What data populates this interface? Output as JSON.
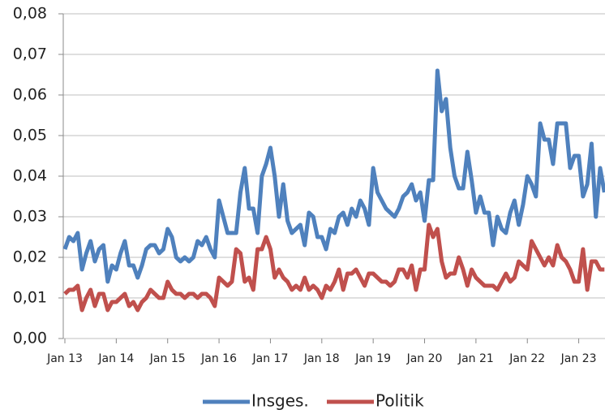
{
  "chart_data": {
    "type": "line",
    "categories": [
      "Jan 13",
      null,
      null,
      null,
      null,
      null,
      null,
      null,
      null,
      null,
      null,
      null,
      "Jan 14",
      null,
      null,
      null,
      null,
      null,
      null,
      null,
      null,
      null,
      null,
      null,
      "Jan 15",
      null,
      null,
      null,
      null,
      null,
      null,
      null,
      null,
      null,
      null,
      null,
      "Jan 16",
      null,
      null,
      null,
      null,
      null,
      null,
      null,
      null,
      null,
      null,
      null,
      "Jan 17",
      null,
      null,
      null,
      null,
      null,
      null,
      null,
      null,
      null,
      null,
      null,
      "Jan 18",
      null,
      null,
      null,
      null,
      null,
      null,
      null,
      null,
      null,
      null,
      null,
      "Jan 19",
      null,
      null,
      null,
      null,
      null,
      null,
      null,
      null,
      null,
      null,
      null,
      "Jan 20",
      null,
      null,
      null,
      null,
      null,
      null,
      null,
      null,
      null,
      null,
      null,
      "Jan 21",
      null,
      null,
      null,
      null,
      null,
      null,
      null,
      null,
      null,
      null,
      null,
      "Jan 22",
      null,
      null,
      null,
      null,
      null,
      null,
      null,
      null,
      null,
      null,
      null,
      "Jan 23",
      null,
      null,
      null,
      null,
      null,
      null
    ],
    "series": [
      {
        "name": "Insges.",
        "color": "#4f81bd",
        "values": [
          0.022,
          0.025,
          0.024,
          0.026,
          0.017,
          0.021,
          0.024,
          0.019,
          0.022,
          0.023,
          0.014,
          0.018,
          0.017,
          0.021,
          0.024,
          0.018,
          0.018,
          0.015,
          0.018,
          0.022,
          0.023,
          0.023,
          0.021,
          0.022,
          0.027,
          0.025,
          0.02,
          0.019,
          0.02,
          0.019,
          0.02,
          0.024,
          0.023,
          0.025,
          0.022,
          0.02,
          0.034,
          0.03,
          0.026,
          0.026,
          0.026,
          0.036,
          0.042,
          0.032,
          0.032,
          0.026,
          0.04,
          0.043,
          0.047,
          0.04,
          0.03,
          0.038,
          0.029,
          0.026,
          0.027,
          0.028,
          0.023,
          0.031,
          0.03,
          0.025,
          0.025,
          0.022,
          0.027,
          0.026,
          0.03,
          0.031,
          0.028,
          0.032,
          0.03,
          0.034,
          0.032,
          0.028,
          0.042,
          0.036,
          0.034,
          0.032,
          0.031,
          0.03,
          0.032,
          0.035,
          0.036,
          0.038,
          0.034,
          0.036,
          0.029,
          0.039,
          0.039,
          0.066,
          0.056,
          0.059,
          0.047,
          0.04,
          0.037,
          0.037,
          0.046,
          0.039,
          0.031,
          0.035,
          0.031,
          0.031,
          0.023,
          0.03,
          0.027,
          0.026,
          0.031,
          0.034,
          0.028,
          0.033,
          0.04,
          0.038,
          0.035,
          0.053,
          0.049,
          0.049,
          0.043,
          0.053,
          0.053,
          0.053,
          0.042,
          0.045,
          0.045,
          0.035,
          0.038,
          0.048,
          0.03,
          0.042,
          0.036
        ]
      },
      {
        "name": "Politik",
        "color": "#c0504d",
        "values": [
          0.011,
          0.012,
          0.012,
          0.013,
          0.007,
          0.01,
          0.012,
          0.008,
          0.011,
          0.011,
          0.007,
          0.009,
          0.009,
          0.01,
          0.011,
          0.008,
          0.009,
          0.007,
          0.009,
          0.01,
          0.012,
          0.011,
          0.01,
          0.01,
          0.014,
          0.012,
          0.011,
          0.011,
          0.01,
          0.011,
          0.011,
          0.01,
          0.011,
          0.011,
          0.01,
          0.008,
          0.015,
          0.014,
          0.013,
          0.014,
          0.022,
          0.021,
          0.014,
          0.015,
          0.012,
          0.022,
          0.022,
          0.025,
          0.022,
          0.015,
          0.017,
          0.015,
          0.014,
          0.012,
          0.013,
          0.012,
          0.015,
          0.012,
          0.013,
          0.012,
          0.01,
          0.013,
          0.012,
          0.014,
          0.017,
          0.012,
          0.016,
          0.016,
          0.017,
          0.015,
          0.013,
          0.016,
          0.016,
          0.015,
          0.014,
          0.014,
          0.013,
          0.014,
          0.017,
          0.017,
          0.015,
          0.018,
          0.012,
          0.017,
          0.017,
          0.028,
          0.025,
          0.027,
          0.019,
          0.015,
          0.016,
          0.016,
          0.02,
          0.017,
          0.013,
          0.017,
          0.015,
          0.014,
          0.013,
          0.013,
          0.013,
          0.012,
          0.014,
          0.016,
          0.014,
          0.015,
          0.019,
          0.018,
          0.017,
          0.024,
          0.022,
          0.02,
          0.018,
          0.02,
          0.018,
          0.023,
          0.02,
          0.019,
          0.017,
          0.014,
          0.014,
          0.022,
          0.012,
          0.019,
          0.019,
          0.017,
          0.017
        ]
      }
    ],
    "ylim": [
      0,
      0.08
    ],
    "yticks": [
      {
        "value": 0,
        "label": "0,00"
      },
      {
        "value": 0.01,
        "label": "0,01"
      },
      {
        "value": 0.02,
        "label": "0,02"
      },
      {
        "value": 0.03,
        "label": "0,03"
      },
      {
        "value": 0.04,
        "label": "0,04"
      },
      {
        "value": 0.05,
        "label": "0,05"
      },
      {
        "value": 0.06,
        "label": "0,06"
      },
      {
        "value": 0.07,
        "label": "0,07"
      },
      {
        "value": 0.08,
        "label": "0,08"
      }
    ],
    "grid": true,
    "legend": "bottom"
  }
}
